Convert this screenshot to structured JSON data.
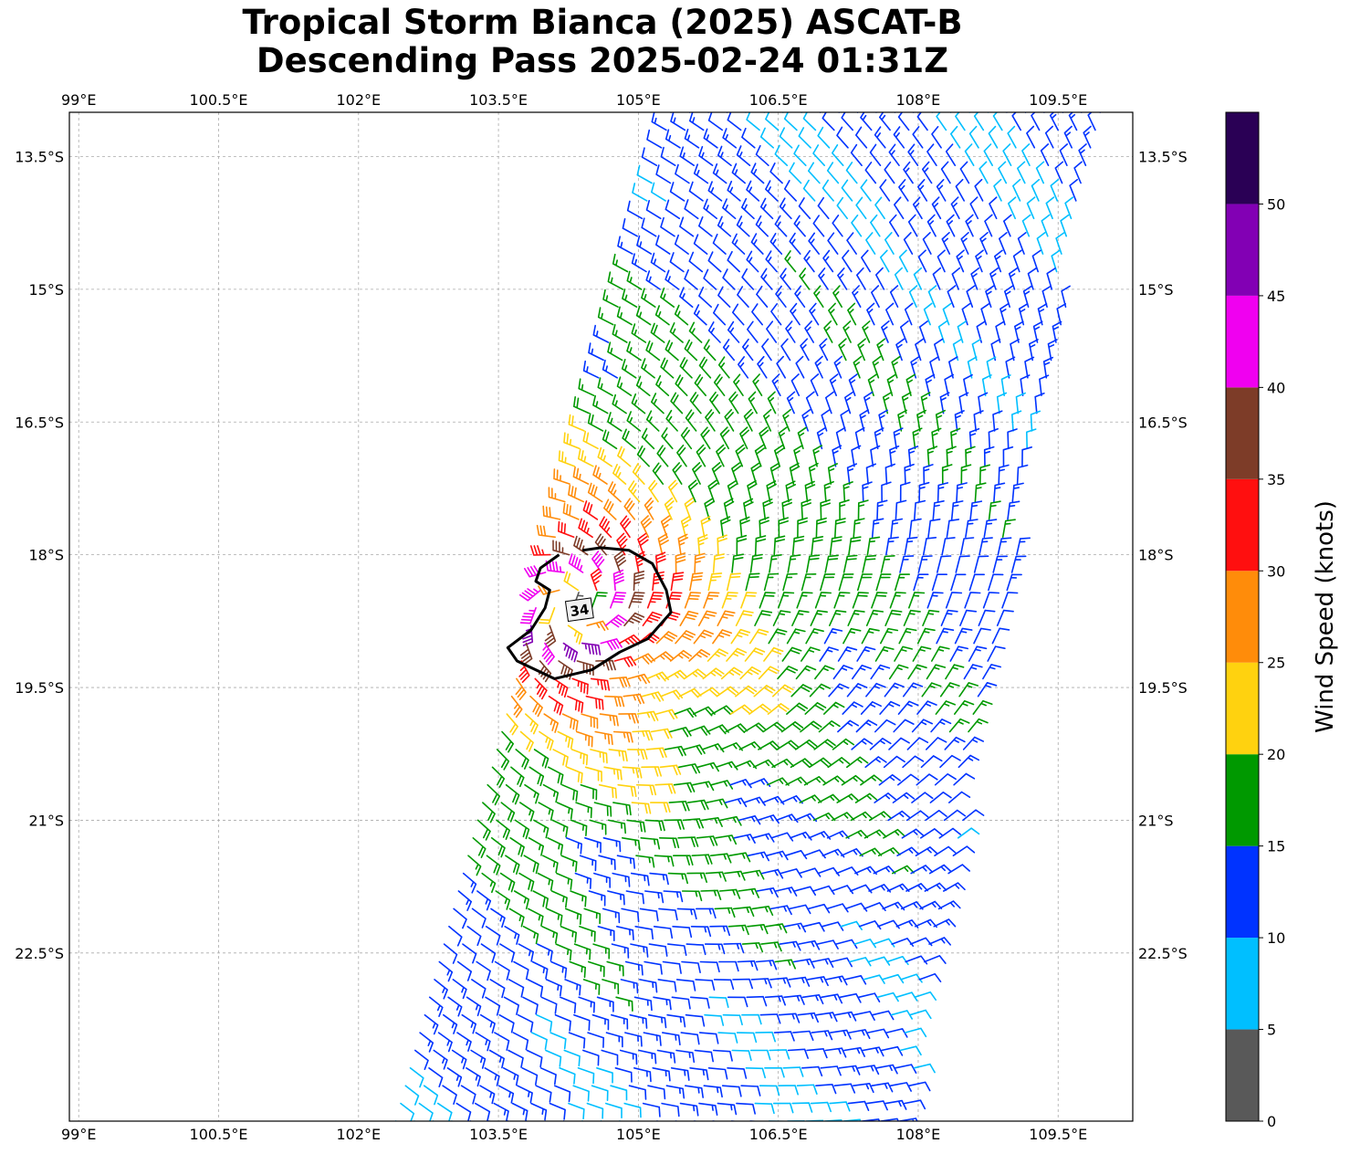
{
  "title": {
    "line1": "Tropical Storm Bianca (2025) ASCAT-B",
    "line2": "Descending Pass 2025-02-24 01:31Z"
  },
  "chart_data": {
    "type": "wind_barbs_map",
    "title": "Tropical Storm Bianca (2025) ASCAT-B Descending Pass 2025-02-24 01:31Z",
    "lon_range": [
      98.9,
      110.3
    ],
    "lat_range": [
      -24.4,
      -13.0
    ],
    "lon_ticks": [
      "99°E",
      "100.5°E",
      "102°E",
      "103.5°E",
      "105°E",
      "106.5°E",
      "108°E",
      "109.5°E"
    ],
    "lon_tick_values": [
      99,
      100.5,
      102,
      103.5,
      105,
      106.5,
      108,
      109.5
    ],
    "lat_ticks": [
      "13.5°S",
      "15°S",
      "16.5°S",
      "18°S",
      "19.5°S",
      "21°S",
      "22.5°S"
    ],
    "lat_tick_values": [
      -13.5,
      -15,
      -16.5,
      -18,
      -19.5,
      -21,
      -22.5
    ],
    "grid": true,
    "storm_center": {
      "lon": 104.3,
      "lat": -18.6
    },
    "max_wind_kt": 47,
    "contour": {
      "level": 34,
      "label": "34",
      "lon": [
        104.4,
        104.6,
        104.9,
        105.15,
        105.3,
        105.35,
        105.1,
        104.8,
        104.5,
        104.1,
        103.7,
        103.6,
        103.85,
        104.0,
        104.05,
        103.9,
        103.95,
        104.15
      ],
      "lat": [
        -17.95,
        -17.92,
        -17.95,
        -18.1,
        -18.4,
        -18.65,
        -18.95,
        -19.1,
        -19.3,
        -19.4,
        -19.2,
        -19.05,
        -18.85,
        -18.6,
        -18.4,
        -18.3,
        -18.15,
        -18.0
      ]
    },
    "colorbar": {
      "label": "Wind Speed (knots)",
      "position": "right",
      "bounds": [
        0,
        5,
        10,
        15,
        20,
        25,
        30,
        35,
        40,
        45,
        50,
        55
      ],
      "tick_labels": [
        "0",
        "5",
        "10",
        "15",
        "20",
        "25",
        "30",
        "35",
        "40",
        "45",
        "50"
      ],
      "colors": [
        "#595959",
        "#00bfff",
        "#0033ff",
        "#009900",
        "#ffd20f",
        "#ff8c0a",
        "#ff0f0f",
        "#7d3c28",
        "#f000f0",
        "#8200b4",
        "#2a0055"
      ]
    },
    "swath": {
      "north_edge_lat": -13.0,
      "south_edge_lat": -24.4,
      "west_lon_at_north": 105.3,
      "east_lon_at_north": 110.0,
      "west_lon_at_south": 102.35,
      "east_lon_at_south": 107.85
    }
  }
}
